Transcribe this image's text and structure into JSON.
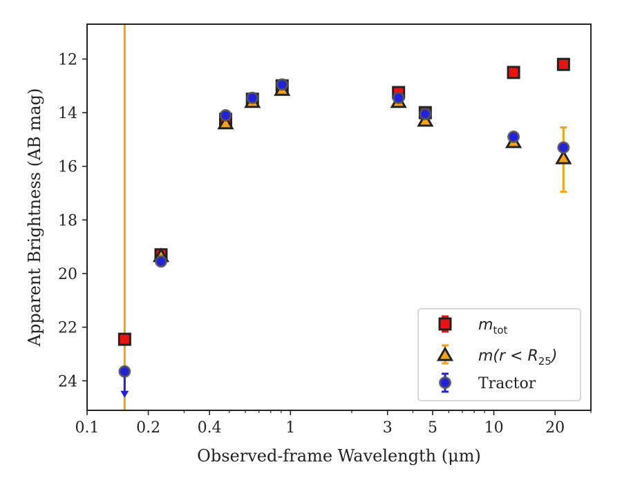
{
  "chart_data": {
    "type": "scatter",
    "title": "",
    "xlabel": "Observed-frame Wavelength (μm)",
    "ylabel": "Apparent Brightness (AB mag)",
    "x_scale": "log",
    "xlim": [
      0.1,
      30
    ],
    "ylim": [
      25.1,
      10.7
    ],
    "y_inverted": true,
    "x_ticks": [
      0.1,
      0.2,
      0.4,
      1,
      3,
      5,
      10,
      20
    ],
    "x_tick_labels": [
      "0.1",
      "0.2",
      "0.4",
      "1",
      "3",
      "5",
      "10",
      "20"
    ],
    "y_ticks": [
      12,
      14,
      16,
      18,
      20,
      22,
      24
    ],
    "y_tick_labels": [
      "12",
      "14",
      "16",
      "18",
      "20",
      "22",
      "24"
    ],
    "grid": false,
    "legend_position": "lower-right",
    "legend": [
      {
        "label": "m",
        "subscript": "tot",
        "marker": "square",
        "color": "#ee1111",
        "edge": "#222222"
      },
      {
        "label": "m(r < R",
        "subscript": "25",
        "suffix": ")",
        "marker": "triangle",
        "color": "#f5a312",
        "edge": "#222222"
      },
      {
        "label": "Tractor",
        "marker": "circle",
        "color": "#2222dd",
        "edge": "#555555"
      }
    ],
    "series": [
      {
        "name": "m_tot",
        "marker": "square",
        "color": "#ee1111",
        "points": [
          {
            "x": 0.153,
            "y": 22.45
          },
          {
            "x": 0.231,
            "y": 19.3
          },
          {
            "x": 0.48,
            "y": 14.25
          },
          {
            "x": 0.65,
            "y": 13.5
          },
          {
            "x": 0.91,
            "y": 13.0
          },
          {
            "x": 3.4,
            "y": 13.25
          },
          {
            "x": 4.6,
            "y": 14.0
          },
          {
            "x": 12.5,
            "y": 12.5
          },
          {
            "x": 22.0,
            "y": 12.2
          }
        ]
      },
      {
        "name": "m(r<R25)",
        "marker": "triangle",
        "color": "#f5a312",
        "points": [
          {
            "x": 0.153,
            "y": null,
            "err": "full-range"
          },
          {
            "x": 0.231,
            "y": 19.35
          },
          {
            "x": 0.48,
            "y": 14.4
          },
          {
            "x": 0.65,
            "y": 13.6
          },
          {
            "x": 0.91,
            "y": 13.15
          },
          {
            "x": 3.4,
            "y": 13.6
          },
          {
            "x": 4.6,
            "y": 14.3
          },
          {
            "x": 12.5,
            "y": 15.1
          },
          {
            "x": 22.0,
            "y": 15.7,
            "err_low": 14.55,
            "err_high": 16.95
          }
        ]
      },
      {
        "name": "Tractor",
        "marker": "circle",
        "color": "#2222dd",
        "points": [
          {
            "x": 0.153,
            "y": 23.65,
            "upper_limit": true
          },
          {
            "x": 0.231,
            "y": 19.55
          },
          {
            "x": 0.48,
            "y": 14.1
          },
          {
            "x": 0.65,
            "y": 13.45
          },
          {
            "x": 0.91,
            "y": 12.95
          },
          {
            "x": 3.4,
            "y": 13.45
          },
          {
            "x": 4.6,
            "y": 14.05
          },
          {
            "x": 12.5,
            "y": 14.9
          },
          {
            "x": 22.0,
            "y": 15.3
          }
        ]
      }
    ]
  }
}
